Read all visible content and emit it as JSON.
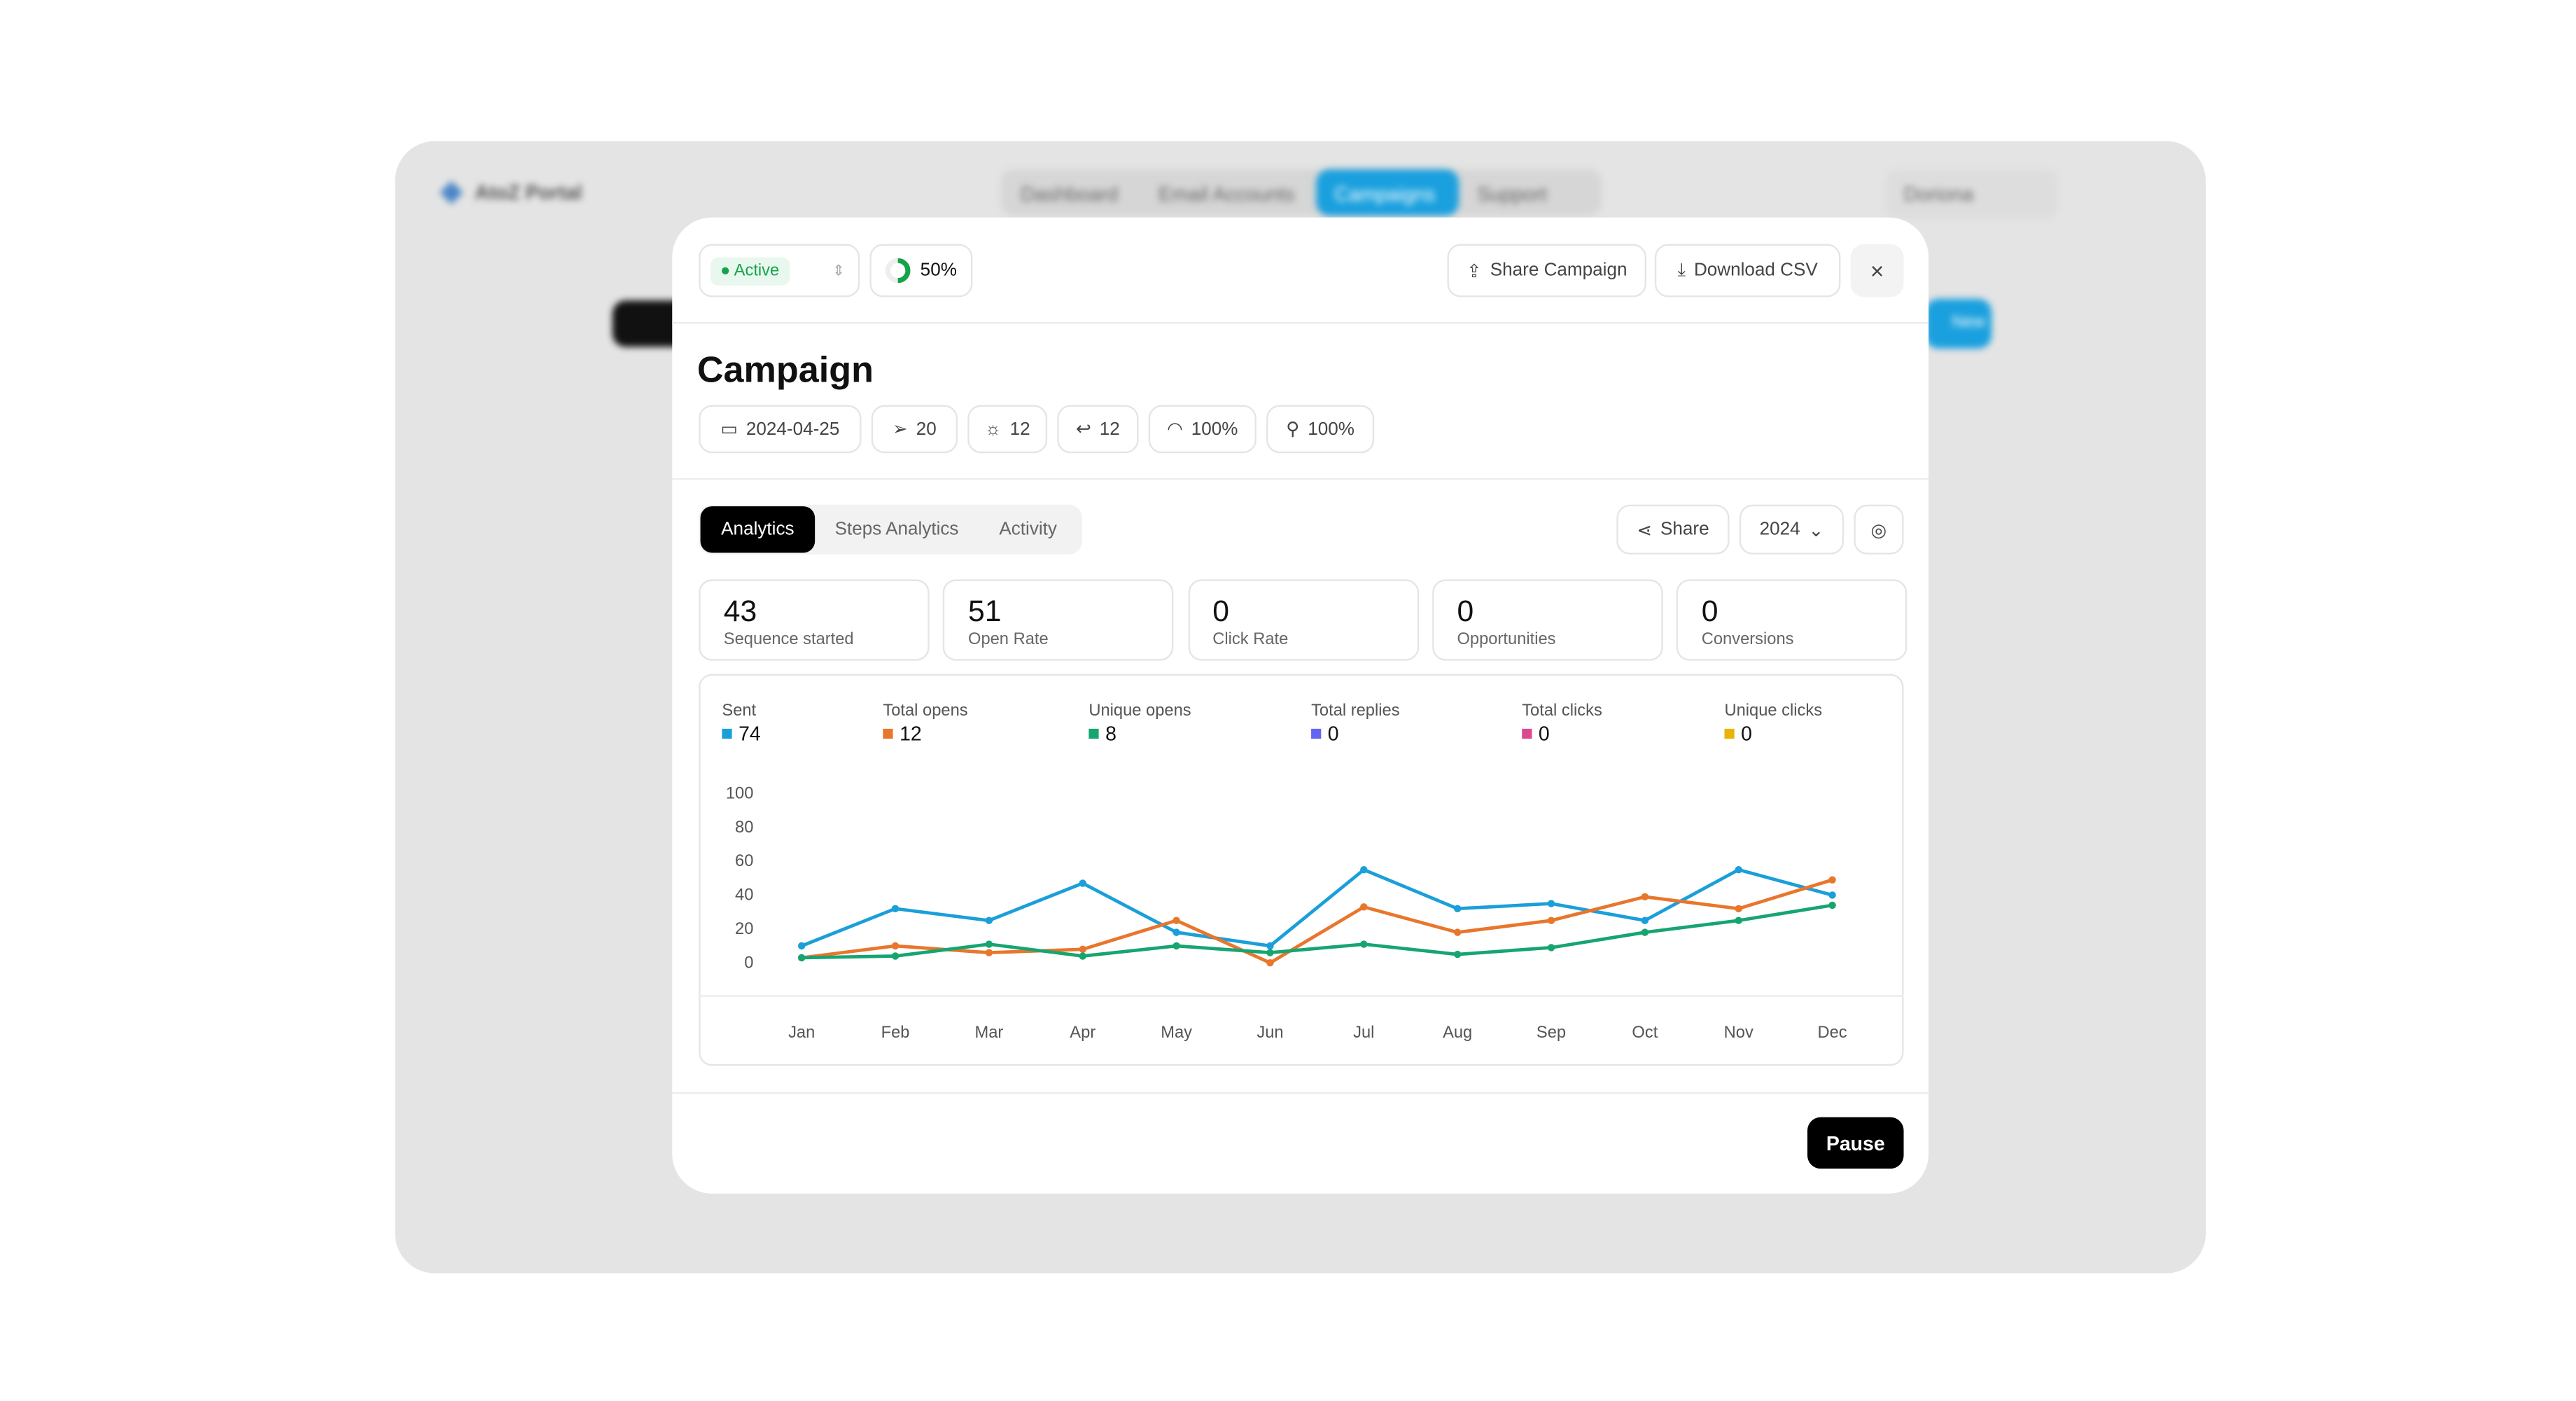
{
  "background": {
    "brand": "AtoZ Portal",
    "nav": [
      "Dashboard",
      "Email Accounts",
      "Campaigns",
      "Support"
    ],
    "user": "Doriona",
    "new_button": "New"
  },
  "modal": {
    "status": "Active",
    "progress": "50%",
    "actions": [
      "Share Campaign",
      "Download CSV"
    ],
    "title": "Campaign",
    "chips": [
      "2024-04-25",
      "20",
      "12",
      "12",
      "100%",
      "100%"
    ],
    "tabs": [
      "Analytics",
      "Steps Analytics",
      "Activity"
    ],
    "share": "Share",
    "year": "2024",
    "metrics": [
      {
        "value": 43,
        "label": "Sequence started"
      },
      {
        "value": 51,
        "label": "Open Rate"
      },
      {
        "value": 0,
        "label": "Click Rate"
      },
      {
        "value": 0,
        "label": "Opportunities"
      },
      {
        "value": 0,
        "label": "Conversions"
      }
    ],
    "footer_button": "Pause"
  },
  "chart_data": {
    "type": "line",
    "categories": [
      "Jan",
      "Feb",
      "Mar",
      "Apr",
      "May",
      "Jun",
      "Jul",
      "Aug",
      "Sep",
      "Oct",
      "Nov",
      "Dec"
    ],
    "ylim": [
      0,
      100
    ],
    "yticks": [
      0,
      20,
      40,
      60,
      80,
      100
    ],
    "series": [
      {
        "name": "Sent",
        "color": "#1a9fd9",
        "total": 74,
        "values": [
          10,
          32,
          25,
          47,
          18,
          10,
          55,
          32,
          35,
          25,
          55,
          40
        ]
      },
      {
        "name": "Total opens",
        "color": "#e8762c",
        "total": 12,
        "values": [
          3,
          10,
          6,
          8,
          25,
          0,
          33,
          18,
          25,
          39,
          32,
          49
        ]
      },
      {
        "name": "Unique opens",
        "color": "#16a571",
        "total": 8,
        "values": [
          3,
          4,
          11,
          4,
          10,
          6,
          11,
          5,
          9,
          18,
          25,
          34
        ]
      },
      {
        "name": "Total replies",
        "color": "#6366f1",
        "total": 0
      },
      {
        "name": "Total clicks",
        "color": "#db4a8f",
        "total": 0
      },
      {
        "name": "Unique clicks",
        "color": "#eab308",
        "total": 0
      }
    ]
  }
}
